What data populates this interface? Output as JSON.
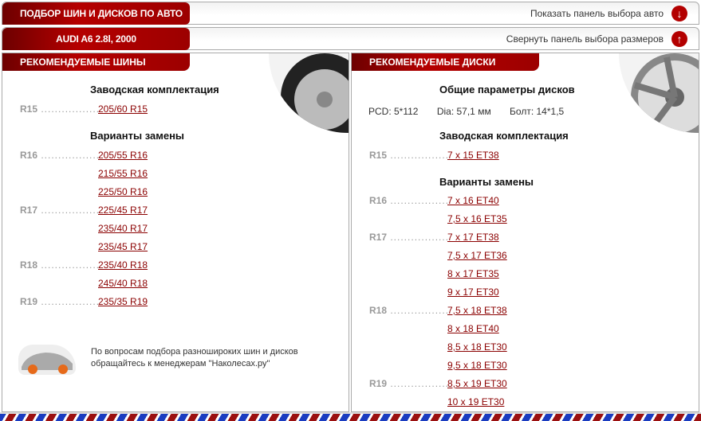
{
  "top_bar": {
    "title": "ПОДБОР ШИН И ДИСКОВ ПО АВТО",
    "action": "Показать панель выбора авто",
    "icon": "arrow-down-icon"
  },
  "car_bar": {
    "title": "AUDI A6 2.8l, 2000",
    "action": "Свернуть панель выбора размеров",
    "icon": "arrow-up-icon"
  },
  "tires": {
    "title": "РЕКОМЕНДУЕМЫЕ ШИНЫ",
    "factory_heading": "Заводская комплектация",
    "factory": [
      {
        "r": "R15",
        "v": "205/60 R15"
      }
    ],
    "alt_heading": "Варианты замены",
    "alternatives": [
      {
        "r": "R16",
        "v": "205/55 R16"
      },
      {
        "r": "",
        "v": "215/55 R16"
      },
      {
        "r": "",
        "v": "225/50 R16"
      },
      {
        "r": "R17",
        "v": "225/45 R17"
      },
      {
        "r": "",
        "v": "235/40 R17"
      },
      {
        "r": "",
        "v": "235/45 R17"
      },
      {
        "r": "R18",
        "v": "235/40 R18"
      },
      {
        "r": "",
        "v": "245/40 R18"
      },
      {
        "r": "R19",
        "v": "235/35 R19"
      }
    ],
    "note": "По вопросам подбора разноширокиx шин и дисков обращайтесь к менеджерам \"Наколесах.ру\""
  },
  "wheels": {
    "title": "РЕКОМЕНДУЕМЫЕ ДИСКИ",
    "params_heading": "Общие параметры дисков",
    "pcd": "PCD: 5*112",
    "dia": "Dia: 57,1 мм",
    "bolt": "Болт: 14*1,5",
    "factory_heading": "Заводская комплектация",
    "factory": [
      {
        "r": "R15",
        "v": "7 x 15 ET38"
      }
    ],
    "alt_heading": "Варианты замены",
    "alternatives": [
      {
        "r": "R16",
        "v": "7 x 16 ET40"
      },
      {
        "r": "",
        "v": "7,5 x 16 ET35"
      },
      {
        "r": "R17",
        "v": "7 x 17 ET38"
      },
      {
        "r": "",
        "v": "7,5 x 17 ET36"
      },
      {
        "r": "",
        "v": "8 x 17 ET35"
      },
      {
        "r": "",
        "v": "9 x 17 ET30"
      },
      {
        "r": "R18",
        "v": "7,5 x 18 ET38"
      },
      {
        "r": "",
        "v": "8 x 18 ET40"
      },
      {
        "r": "",
        "v": "8,5 x 18 ET30"
      },
      {
        "r": "",
        "v": "9,5 x 18 ET30"
      },
      {
        "r": "R19",
        "v": "8,5 x 19 ET30"
      },
      {
        "r": "",
        "v": "10 x 19 ET30"
      }
    ]
  },
  "colors": {
    "brand": "#b30000",
    "link": "#8b0000"
  }
}
